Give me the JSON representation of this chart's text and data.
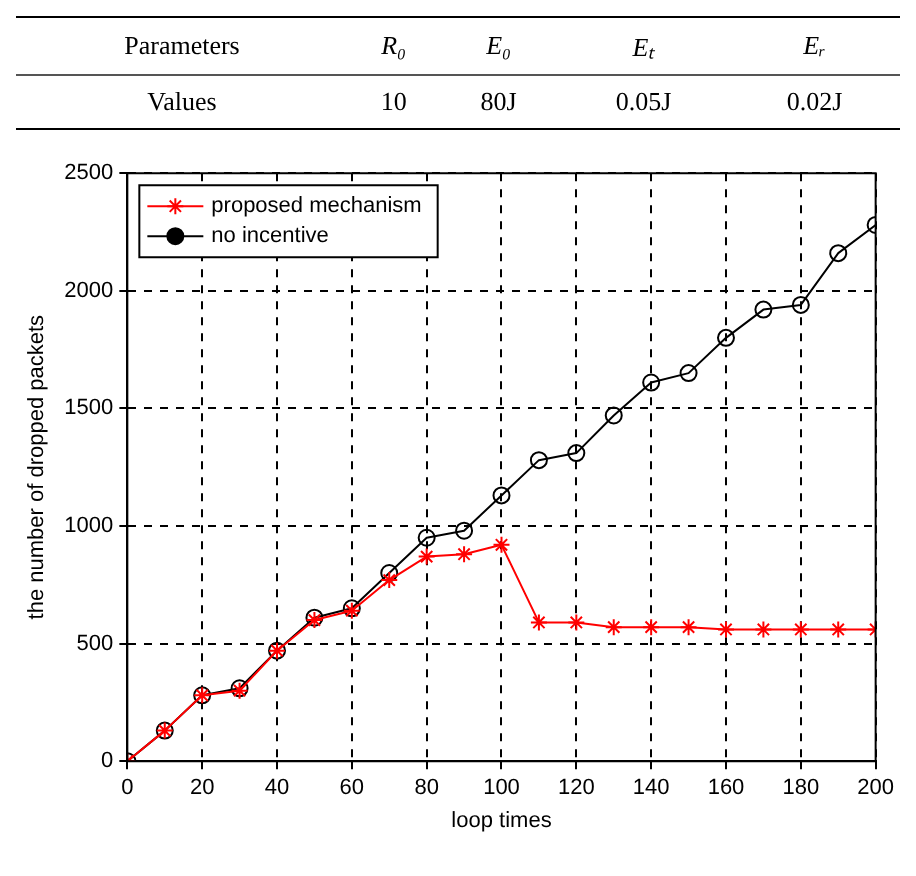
{
  "chart_data": {
    "type": "line",
    "annotations": [
      "Parameters",
      "R₀",
      "E₀",
      "Eₜ",
      "Eᵣ",
      "Values",
      "10",
      "80J",
      "0.05J",
      "0.02J"
    ],
    "xlabel": "loop times",
    "ylabel": "the number of dropped packets",
    "x": [
      0,
      10,
      20,
      30,
      40,
      50,
      60,
      70,
      80,
      90,
      100,
      110,
      120,
      130,
      140,
      150,
      160,
      170,
      180,
      190,
      200
    ],
    "series": [
      {
        "name": "proposed mechanism",
        "color": "#ff0000",
        "marker": "cross",
        "values": [
          0,
          130,
          280,
          300,
          470,
          600,
          640,
          770,
          870,
          880,
          920,
          590,
          590,
          570,
          570,
          570,
          560,
          560,
          560,
          560,
          560
        ]
      },
      {
        "name": "no incentive",
        "color": "#000000",
        "marker": "circle",
        "values": [
          0,
          130,
          280,
          310,
          470,
          610,
          650,
          800,
          950,
          980,
          1130,
          1280,
          1310,
          1470,
          1610,
          1650,
          1800,
          1920,
          1940,
          2160,
          2280
        ]
      }
    ],
    "xlim": [
      0,
      200
    ],
    "xticks": [
      0,
      20,
      40,
      60,
      80,
      100,
      120,
      140,
      160,
      180,
      200
    ],
    "ylim": [
      0,
      2500
    ],
    "yticks": [
      0,
      500,
      1000,
      1500,
      2000,
      2500
    ],
    "grid": true,
    "legend": "top left",
    "line_style": "solid"
  }
}
